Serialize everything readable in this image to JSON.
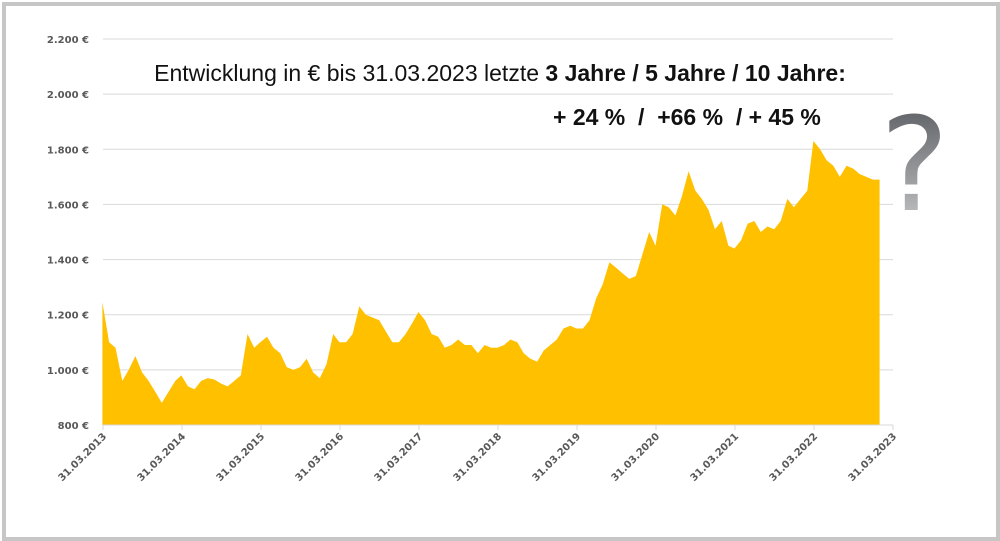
{
  "chart_data": {
    "type": "area",
    "title_line1_regular": "Entwicklung in € bis 31.03.2023 letzte ",
    "title_line1_bold": "3 Jahre / 5 Jahre / 10 Jahre:",
    "title_line2": "+ 24 %  /  +66 %  / + 45 %",
    "annotation": "?",
    "xlabel": "",
    "ylabel": "",
    "ylim": [
      800,
      2200
    ],
    "yticks": [
      800,
      1000,
      1200,
      1400,
      1600,
      1800,
      2000,
      2200
    ],
    "ytick_labels": [
      "800 €",
      "1.000 €",
      "1.200 €",
      "1.400 €",
      "1.600 €",
      "1.800 €",
      "2.000 €",
      "2.200 €"
    ],
    "xlim": [
      "2013-03-31",
      "2023-03-31"
    ],
    "xtick_labels": [
      "31.03.2013",
      "31.03.2014",
      "31.03.2015",
      "31.03.2016",
      "31.03.2017",
      "31.03.2018",
      "31.03.2019",
      "31.03.2020",
      "31.03.2021",
      "31.03.2022",
      "31.03.2023"
    ],
    "grid": "horizontal",
    "fill_color": "#FFC000",
    "series": [
      {
        "x": [
          "2013-03",
          "2013-04",
          "2013-05",
          "2013-06",
          "2013-07",
          "2013-08",
          "2013-09",
          "2013-10",
          "2013-11",
          "2013-12",
          "2014-01",
          "2014-02",
          "2014-03",
          "2014-04",
          "2014-05",
          "2014-06",
          "2014-07",
          "2014-08",
          "2014-09",
          "2014-10",
          "2014-11",
          "2014-12",
          "2015-01",
          "2015-02",
          "2015-03",
          "2015-04",
          "2015-05",
          "2015-06",
          "2015-07",
          "2015-08",
          "2015-09",
          "2015-10",
          "2015-11",
          "2015-12",
          "2016-01",
          "2016-02",
          "2016-03",
          "2016-04",
          "2016-05",
          "2016-06",
          "2016-07",
          "2016-08",
          "2016-09",
          "2016-10",
          "2016-11",
          "2016-12",
          "2017-01",
          "2017-02",
          "2017-03",
          "2017-04",
          "2017-05",
          "2017-06",
          "2017-07",
          "2017-08",
          "2017-09",
          "2017-10",
          "2017-11",
          "2017-12",
          "2018-01",
          "2018-02",
          "2018-03",
          "2018-04",
          "2018-05",
          "2018-06",
          "2018-07",
          "2018-08",
          "2018-09",
          "2018-10",
          "2018-11",
          "2018-12",
          "2019-01",
          "2019-02",
          "2019-03",
          "2019-04",
          "2019-05",
          "2019-06",
          "2019-07",
          "2019-08",
          "2019-09",
          "2019-10",
          "2019-11",
          "2019-12",
          "2020-01",
          "2020-02",
          "2020-03",
          "2020-04",
          "2020-05",
          "2020-06",
          "2020-07",
          "2020-08",
          "2020-09",
          "2020-10",
          "2020-11",
          "2020-12",
          "2021-01",
          "2021-02",
          "2021-03",
          "2021-04",
          "2021-05",
          "2021-06",
          "2021-07",
          "2021-08",
          "2021-09",
          "2021-10",
          "2021-11",
          "2021-12",
          "2022-01",
          "2022-02",
          "2022-03",
          "2022-04",
          "2022-05",
          "2022-06",
          "2022-07",
          "2022-08",
          "2022-09",
          "2022-10",
          "2022-11",
          "2022-12",
          "2023-01"
        ],
        "values": [
          1245,
          1100,
          1080,
          960,
          1000,
          1050,
          990,
          960,
          920,
          880,
          920,
          960,
          980,
          940,
          930,
          960,
          970,
          965,
          950,
          940,
          960,
          980,
          1130,
          1080,
          1100,
          1120,
          1080,
          1060,
          1010,
          1000,
          1010,
          1040,
          990,
          970,
          1020,
          1130,
          1100,
          1100,
          1130,
          1230,
          1200,
          1190,
          1180,
          1140,
          1100,
          1100,
          1130,
          1170,
          1210,
          1180,
          1130,
          1120,
          1080,
          1090,
          1110,
          1090,
          1090,
          1060,
          1090,
          1080,
          1080,
          1090,
          1110,
          1100,
          1060,
          1040,
          1030,
          1070,
          1090,
          1110,
          1150,
          1160,
          1150,
          1150,
          1180,
          1260,
          1310,
          1390,
          1370,
          1350,
          1330,
          1340,
          1420,
          1500,
          1450,
          1600,
          1590,
          1560,
          1630,
          1720,
          1650,
          1620,
          1580,
          1510,
          1540,
          1450,
          1440,
          1470,
          1530,
          1540,
          1500,
          1520,
          1510,
          1540,
          1620,
          1590,
          1620,
          1650,
          1830,
          1800,
          1760,
          1740,
          1700,
          1740,
          1730,
          1710,
          1700,
          1690,
          1690
        ]
      }
    ]
  }
}
